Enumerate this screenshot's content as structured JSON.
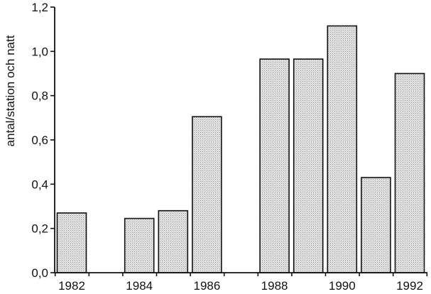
{
  "chart_data": {
    "type": "bar",
    "categories": [
      "1982",
      "1983",
      "1984",
      "1985",
      "1986",
      "1987",
      "1988",
      "1989",
      "1990",
      "1991",
      "1992"
    ],
    "values": [
      0.27,
      null,
      0.245,
      0.28,
      0.705,
      null,
      0.965,
      0.965,
      1.115,
      0.43,
      0.9
    ],
    "x_tick_labels": [
      "1982",
      "1984",
      "1986",
      "1988",
      "1990",
      "1992"
    ],
    "y_ticks": [
      "0,0",
      "0,2",
      "0,4",
      "0,6",
      "0,8",
      "1,0",
      "1,2"
    ],
    "ylim": [
      0,
      1.2
    ],
    "title": "",
    "xlabel": "",
    "ylabel": "antal/station och natt",
    "grid": false,
    "bar_fill": "#dcdcdc",
    "stroke_color": "#111111"
  }
}
